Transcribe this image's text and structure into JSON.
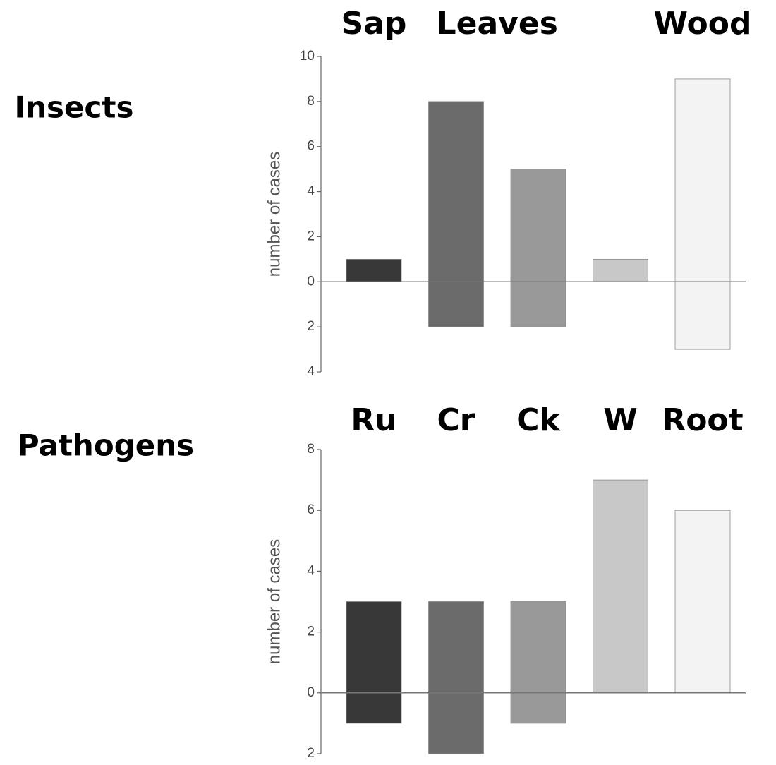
{
  "chart_data": [
    {
      "type": "bar",
      "panel_label": "Insects",
      "y_label": "number of cases",
      "groups": [
        {
          "label": "Sap",
          "start": 0,
          "end": 0
        },
        {
          "label": "Leaves",
          "start": 1,
          "end": 2
        },
        {
          "label": "Wood",
          "start": 4,
          "end": 4
        }
      ],
      "colors": [
        "#383838",
        "#6b6b6b",
        "#999999",
        "#c8c8c8",
        "#f3f3f3"
      ],
      "series": [
        {
          "values": [
            1,
            8,
            5,
            1,
            9
          ]
        },
        {
          "values": [
            0,
            -2,
            -2,
            0,
            -3
          ]
        }
      ],
      "ylim": [
        -4,
        10
      ],
      "yticks": [
        10,
        8,
        6,
        4,
        2,
        0,
        {
          "value": -2,
          "label": "2"
        },
        {
          "value": -4,
          "label": "4"
        }
      ]
    },
    {
      "type": "bar",
      "panel_label": "Pathogens",
      "y_label": "number of cases",
      "groups": [
        {
          "label": "Ru",
          "start": 0,
          "end": 0
        },
        {
          "label": "Cr",
          "start": 1,
          "end": 1
        },
        {
          "label": "Ck",
          "start": 2,
          "end": 2
        },
        {
          "label": "W",
          "start": 3,
          "end": 3
        },
        {
          "label": "Root",
          "start": 4,
          "end": 4
        }
      ],
      "colors": [
        "#383838",
        "#6b6b6b",
        "#999999",
        "#c8c8c8",
        "#f3f3f3"
      ],
      "series": [
        {
          "values": [
            3,
            3,
            3,
            7,
            6
          ]
        },
        {
          "values": [
            -1,
            -2,
            -1,
            0,
            0
          ]
        }
      ],
      "ylim": [
        -2,
        8
      ],
      "yticks": [
        8,
        6,
        4,
        2,
        0,
        {
          "value": -2,
          "label": "2"
        }
      ]
    }
  ]
}
